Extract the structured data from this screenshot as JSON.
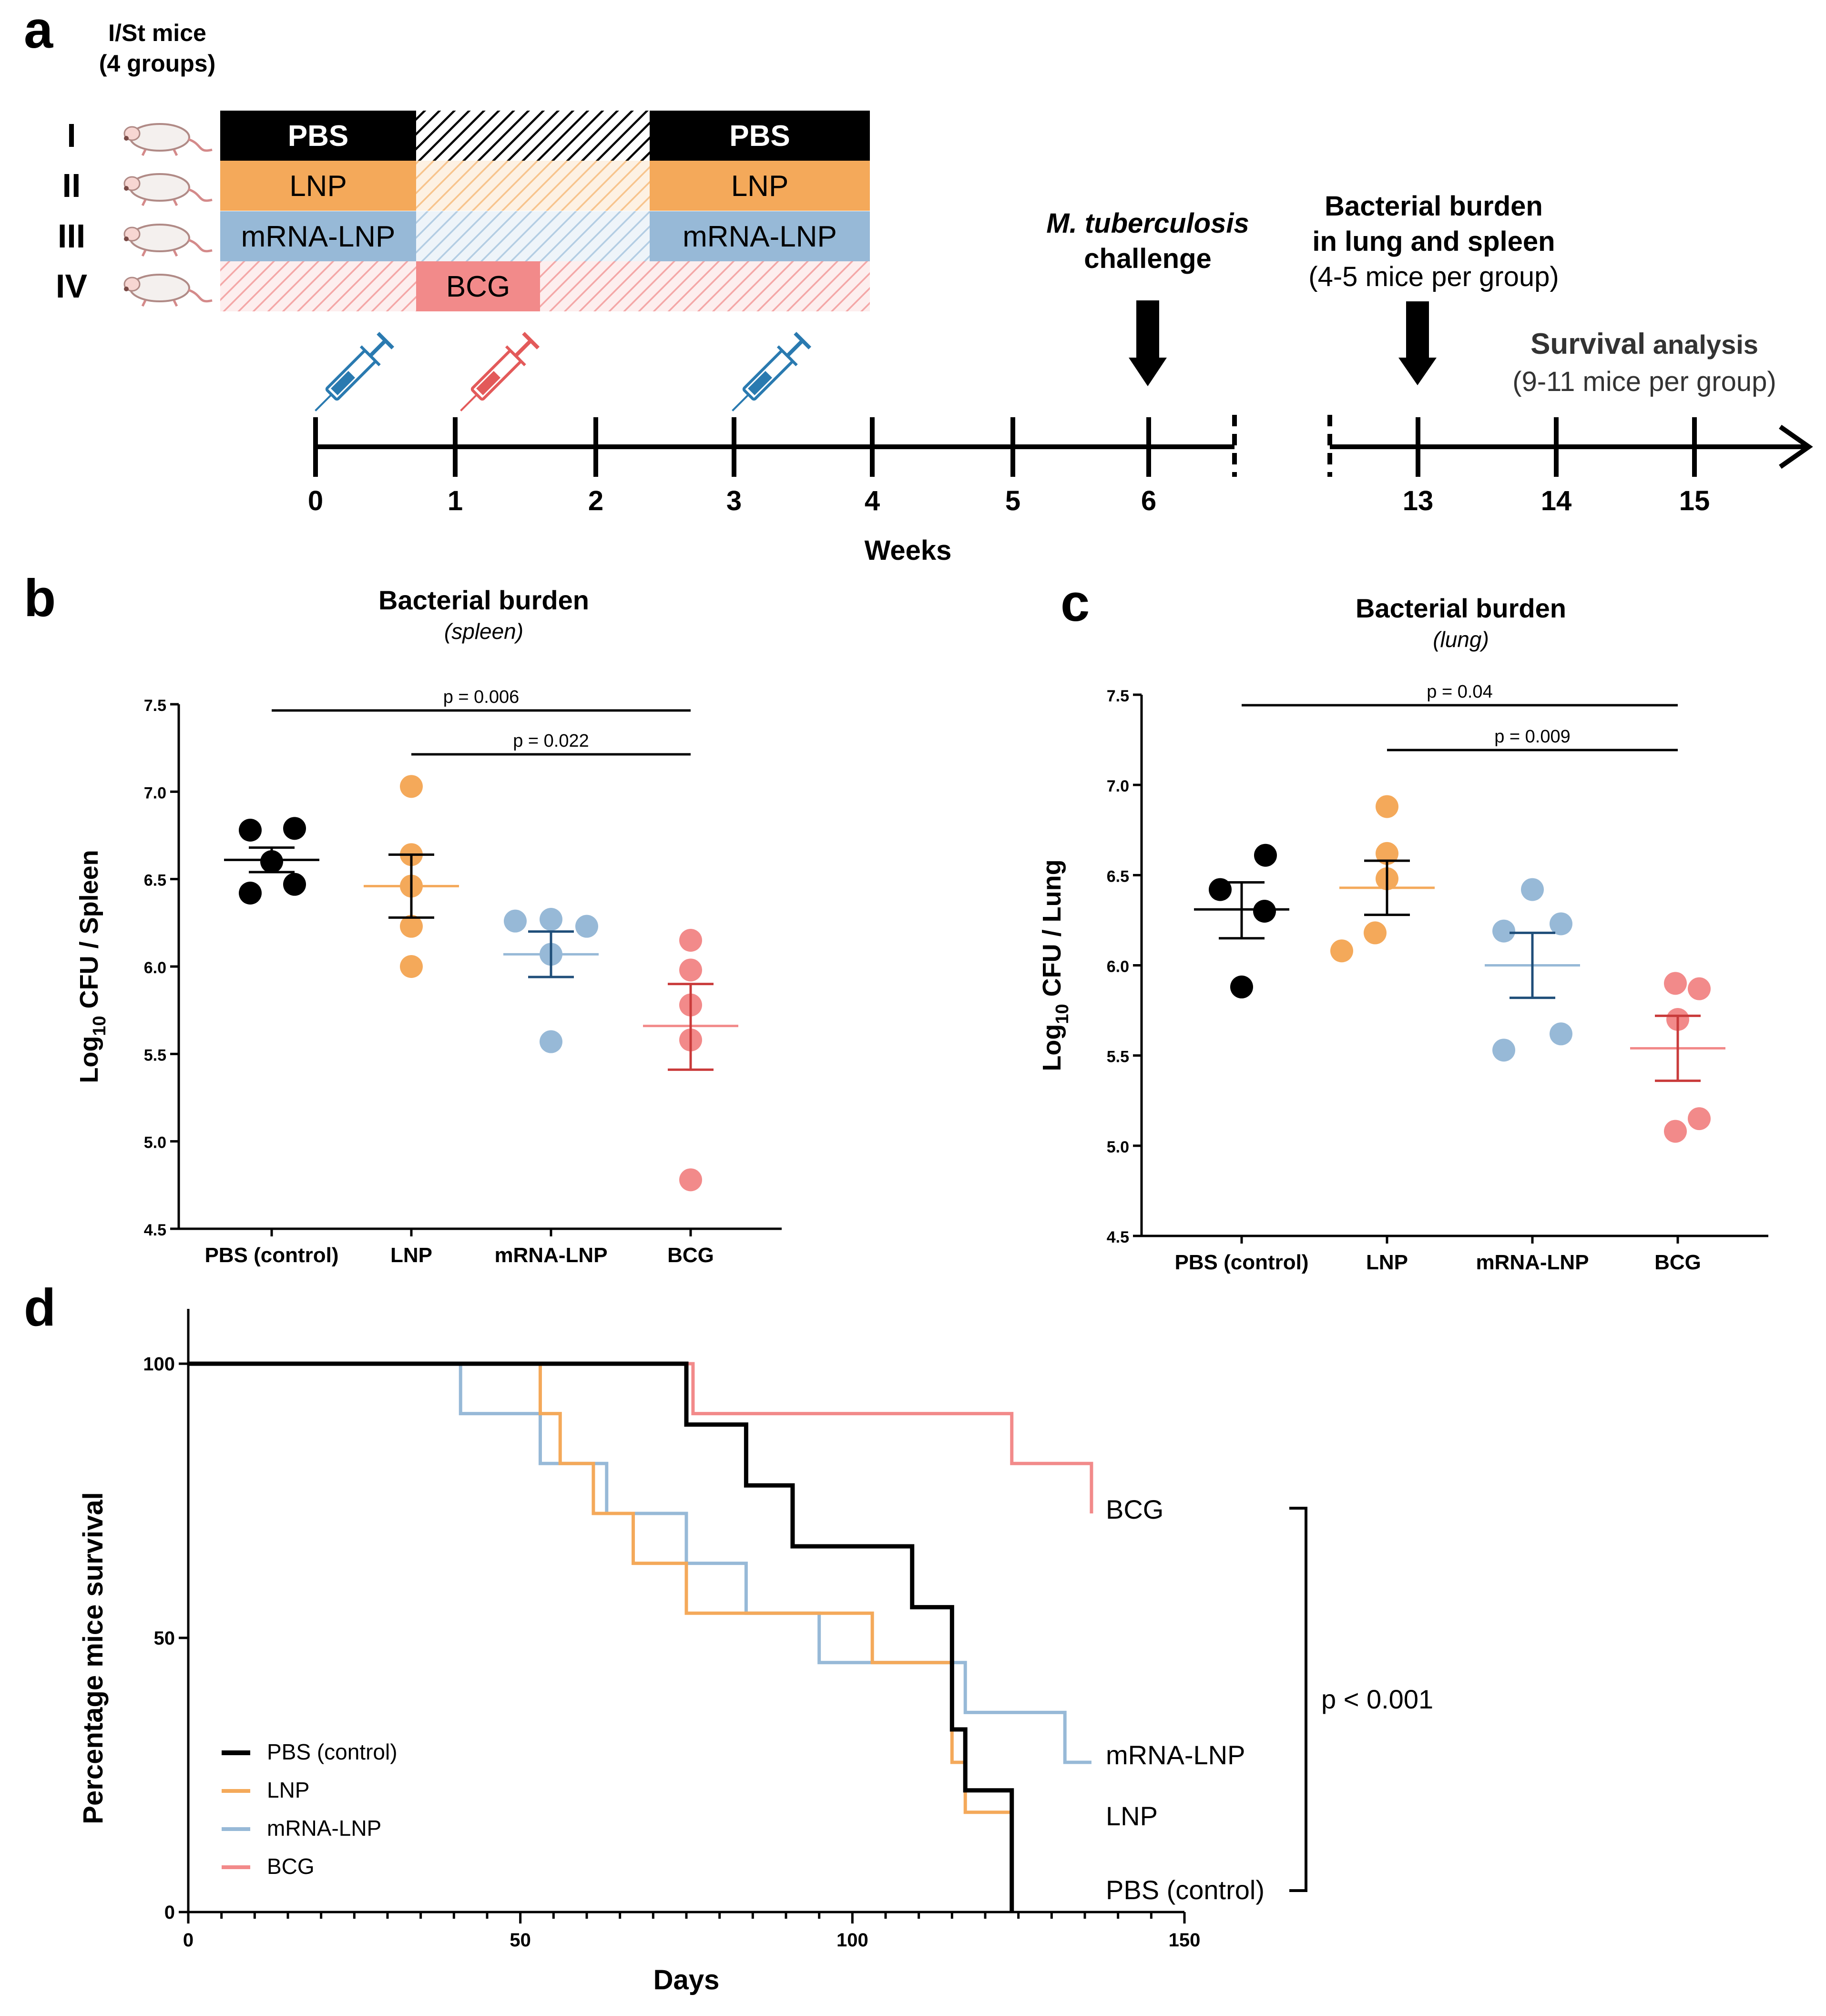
{
  "colors": {
    "PBS": "#000000",
    "LNP": "#f4a95a",
    "mRNA": "#97b9d7",
    "mRNA_dark": "#1f4e79",
    "BCG": "#f28a8a",
    "BCG_dark": "#c93b3b",
    "syringe_blue": "#2a7ab0",
    "syringe_red": "#e35a5a"
  },
  "panel_a": {
    "label": "a",
    "mice_title_1": "I/St mice",
    "mice_title_2": "(4 groups)",
    "groups": [
      {
        "roman": "I",
        "blocks": [
          "PBS",
          "",
          "PBS"
        ]
      },
      {
        "roman": "II",
        "blocks": [
          "LNP",
          "",
          "LNP"
        ]
      },
      {
        "roman": "III",
        "blocks": [
          "mRNA-LNP",
          "",
          "mRNA-LNP"
        ]
      },
      {
        "roman": "IV",
        "blocks": [
          "",
          "BCG",
          ""
        ]
      }
    ],
    "challenge_1": "M. tuberculosis",
    "challenge_2": "challenge",
    "burden_1": "Bacterial burden",
    "burden_2": "in lung and spleen",
    "burden_3": "(4-5 mice per group)",
    "survival_bold": "Survival",
    "survival_rest": " analysis",
    "survival_2": "(9-11 mice per group)",
    "timeline_ticks": [
      "0",
      "1",
      "2",
      "3",
      "4",
      "5",
      "6",
      "13",
      "14",
      "15"
    ],
    "xlabel": "Weeks"
  },
  "chart_data": [
    {
      "panel": "b",
      "type": "scatter",
      "title": "Bacterial burden",
      "subtitle": "(spleen)",
      "ylabel": "Log10 CFU / Spleen",
      "ylabel_main": "Log",
      "ylabel_sub": "10",
      "ylabel_rest": " CFU / Spleen",
      "ylim": [
        4.5,
        7.5
      ],
      "yticks": [
        "4.5",
        "5.0",
        "5.5",
        "6.0",
        "6.5",
        "7.0",
        "7.5"
      ],
      "categories": [
        "PBS (control)",
        "LNP",
        "mRNA-LNP",
        "BCG"
      ],
      "series": [
        {
          "name": "PBS (control)",
          "points": [
            6.78,
            6.79,
            6.6,
            6.42,
            6.47
          ],
          "mean": 6.61,
          "sem_low": 6.54,
          "sem_high": 6.68
        },
        {
          "name": "LNP",
          "points": [
            7.03,
            6.64,
            6.46,
            6.23,
            6.0
          ],
          "mean": 6.46,
          "sem_low": 6.28,
          "sem_high": 6.64
        },
        {
          "name": "mRNA-LNP",
          "points": [
            6.26,
            6.27,
            6.23,
            6.07,
            5.57
          ],
          "mean": 6.07,
          "sem_low": 5.94,
          "sem_high": 6.2
        },
        {
          "name": "BCG",
          "points": [
            6.15,
            5.98,
            5.78,
            5.58,
            4.78
          ],
          "mean": 5.66,
          "sem_low": 5.41,
          "sem_high": 5.9
        }
      ],
      "pvalues": [
        {
          "label": "p = 0.006",
          "from": 0,
          "to": 3
        },
        {
          "label": "p = 0.022",
          "from": 1,
          "to": 3
        }
      ]
    },
    {
      "panel": "c",
      "type": "scatter",
      "title": "Bacterial burden",
      "subtitle": "(lung)",
      "ylabel": "Log10 CFU / Lung",
      "ylabel_main": "Log",
      "ylabel_sub": "10",
      "ylabel_rest": " CFU / Lung",
      "ylim": [
        4.5,
        7.5
      ],
      "yticks": [
        "4.5",
        "5.0",
        "5.5",
        "6.0",
        "6.5",
        "7.0",
        "7.5"
      ],
      "categories": [
        "PBS (control)",
        "LNP",
        "mRNA-LNP",
        "BCG"
      ],
      "series": [
        {
          "name": "PBS (control)",
          "points": [
            6.61,
            6.42,
            6.3,
            5.88
          ],
          "mean": 6.31,
          "sem_low": 6.15,
          "sem_high": 6.46
        },
        {
          "name": "LNP",
          "points": [
            6.88,
            6.62,
            6.48,
            6.18,
            6.08
          ],
          "mean": 6.43,
          "sem_low": 6.28,
          "sem_high": 6.58
        },
        {
          "name": "mRNA-LNP",
          "points": [
            6.42,
            6.19,
            6.23,
            5.62,
            5.53
          ],
          "mean": 6.0,
          "sem_low": 5.82,
          "sem_high": 6.18
        },
        {
          "name": "BCG",
          "points": [
            5.9,
            5.87,
            5.7,
            5.15,
            5.08
          ],
          "mean": 5.54,
          "sem_low": 5.36,
          "sem_high": 5.72
        }
      ],
      "pvalues": [
        {
          "label": "p = 0.04",
          "from": 0,
          "to": 3
        },
        {
          "label": "p = 0.009",
          "from": 1,
          "to": 3
        }
      ]
    },
    {
      "panel": "d",
      "type": "line",
      "subtype": "kaplan-meier",
      "xlabel": "Days",
      "ylabel": "Percentage mice survival",
      "xlim": [
        0,
        150
      ],
      "ylim": [
        0,
        100
      ],
      "xticks": [
        "0",
        "50",
        "100",
        "150"
      ],
      "yticks": [
        "0",
        "50",
        "100"
      ],
      "series": [
        {
          "name": "PBS (control)",
          "end_label": "PBS (control)",
          "steps": [
            [
              0,
              100
            ],
            [
              75,
              100
            ],
            [
              75,
              88.9
            ],
            [
              84,
              88.9
            ],
            [
              84,
              77.8
            ],
            [
              91,
              77.8
            ],
            [
              91,
              66.7
            ],
            [
              109,
              66.7
            ],
            [
              109,
              55.6
            ],
            [
              115,
              55.6
            ],
            [
              115,
              33.3
            ],
            [
              117,
              33.3
            ],
            [
              117,
              22.2
            ],
            [
              124,
              22.2
            ],
            [
              124,
              0
            ]
          ]
        },
        {
          "name": "LNP",
          "end_label": "LNP",
          "steps": [
            [
              0,
              100
            ],
            [
              53,
              100
            ],
            [
              53,
              90.9
            ],
            [
              56,
              90.9
            ],
            [
              56,
              81.8
            ],
            [
              61,
              81.8
            ],
            [
              61,
              72.7
            ],
            [
              67,
              72.7
            ],
            [
              67,
              63.6
            ],
            [
              75,
              63.6
            ],
            [
              75,
              54.5
            ],
            [
              103,
              54.5
            ],
            [
              103,
              45.5
            ],
            [
              115,
              45.5
            ],
            [
              115,
              27.3
            ],
            [
              117,
              27.3
            ],
            [
              117,
              18.2
            ],
            [
              124,
              18.2
            ],
            [
              124,
              0
            ]
          ]
        },
        {
          "name": "mRNA-LNP",
          "end_label": "mRNA-LNP",
          "steps": [
            [
              0,
              100
            ],
            [
              41,
              100
            ],
            [
              41,
              90.9
            ],
            [
              53,
              90.9
            ],
            [
              53,
              81.8
            ],
            [
              63,
              81.8
            ],
            [
              63,
              72.7
            ],
            [
              75,
              72.7
            ],
            [
              75,
              63.6
            ],
            [
              84,
              63.6
            ],
            [
              84,
              54.5
            ],
            [
              95,
              54.5
            ],
            [
              95,
              45.5
            ],
            [
              117,
              45.5
            ],
            [
              117,
              36.4
            ],
            [
              132,
              36.4
            ],
            [
              132,
              27.3
            ],
            [
              136,
              27.3
            ]
          ]
        },
        {
          "name": "BCG",
          "end_label": "BCG",
          "steps": [
            [
              0,
              100
            ],
            [
              76,
              100
            ],
            [
              76,
              90.9
            ],
            [
              124,
              90.9
            ],
            [
              124,
              81.8
            ],
            [
              136,
              81.8
            ],
            [
              136,
              72.7
            ]
          ]
        }
      ],
      "pvalue": "p < 0.001"
    }
  ],
  "panel_labels": {
    "b": "b",
    "c": "c",
    "d": "d"
  }
}
